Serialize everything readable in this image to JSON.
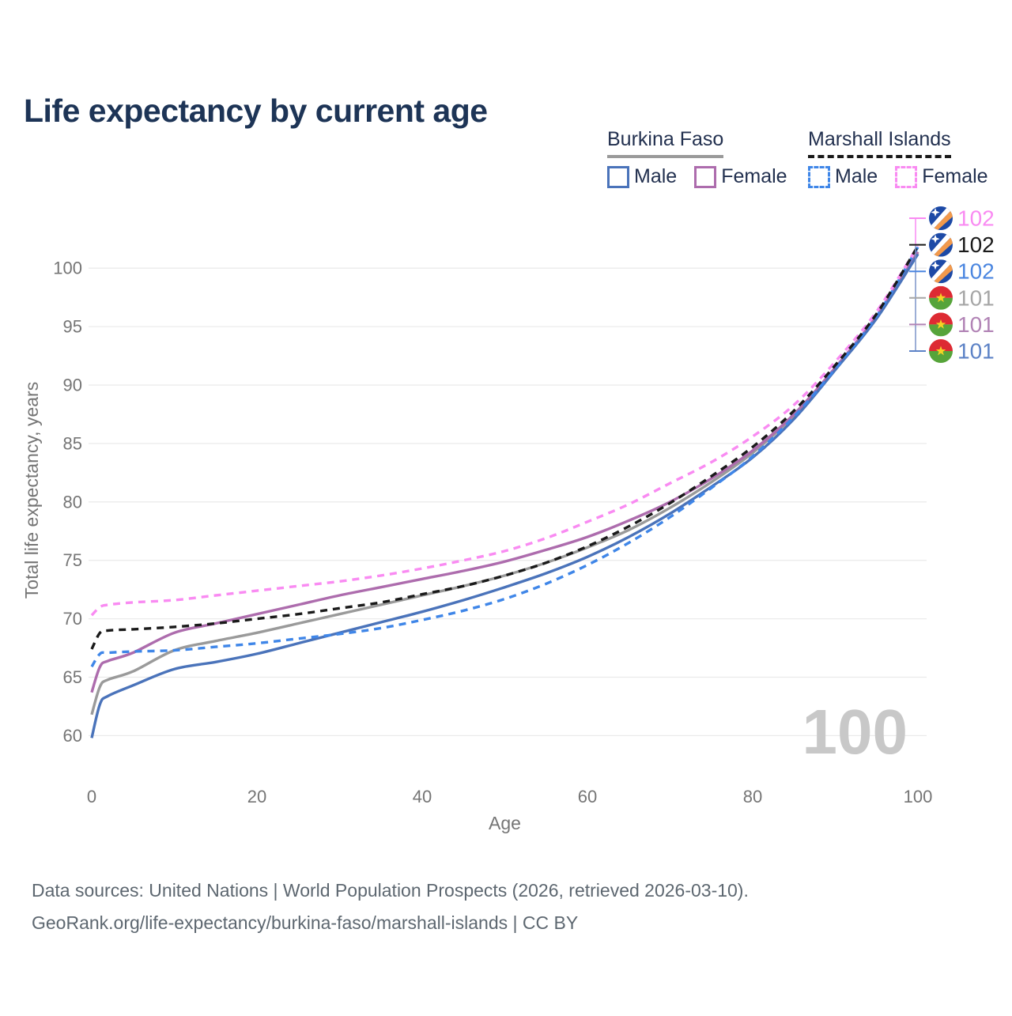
{
  "title": "Life expectancy by current age",
  "legend": {
    "groups": [
      {
        "label": "Burkina Faso",
        "underline": {
          "color": "#9a9a9a",
          "style": "solid"
        },
        "items": [
          {
            "label": "Male",
            "color": "#4a73ba",
            "dash": false
          },
          {
            "label": "Female",
            "color": "#ad6cad",
            "dash": false
          }
        ]
      },
      {
        "label": "Marshall Islands",
        "underline": {
          "color": "#1a1a1a",
          "style": "dashed"
        },
        "items": [
          {
            "label": "Male",
            "color": "#3f86e8",
            "dash": true
          },
          {
            "label": "Female",
            "color": "#f98bf2",
            "dash": true
          }
        ]
      }
    ]
  },
  "chart_data": {
    "type": "line",
    "title": "Life expectancy by current age",
    "xlabel": "Age",
    "ylabel": "Total life expectancy, years",
    "x_ticks": [
      0,
      20,
      40,
      60,
      80,
      100
    ],
    "y_ticks": [
      60,
      65,
      70,
      75,
      80,
      85,
      90,
      95,
      100
    ],
    "xlim": [
      0,
      100
    ],
    "ylim": [
      58,
      103
    ],
    "grid": true,
    "legend_position": "top-right",
    "watermark": "100",
    "x": [
      0,
      1,
      2,
      5,
      10,
      15,
      20,
      25,
      30,
      35,
      40,
      45,
      50,
      55,
      60,
      65,
      70,
      75,
      80,
      85,
      90,
      95,
      100
    ],
    "series": [
      {
        "name": "Marshall Islands Female",
        "country": "Marshall Islands",
        "sex": "Female",
        "color": "#f98bf2",
        "label_color": "#f98bf2",
        "dash": true,
        "flag": "marshall-islands",
        "end_label": "102",
        "values": [
          70.3,
          71.0,
          71.2,
          71.4,
          71.6,
          72.0,
          72.4,
          72.8,
          73.2,
          73.7,
          74.3,
          75.0,
          75.8,
          76.9,
          78.3,
          79.8,
          81.6,
          83.4,
          85.6,
          88.3,
          92.0,
          96.3,
          101.9
        ]
      },
      {
        "name": "Marshall Islands",
        "country": "Marshall Islands",
        "sex": "Both",
        "color": "#1a1a1a",
        "label_color": "#1a1a1a",
        "dash": true,
        "flag": "marshall-islands",
        "end_label": "102",
        "values": [
          67.4,
          68.8,
          69.0,
          69.1,
          69.3,
          69.6,
          70.0,
          70.4,
          70.9,
          71.4,
          72.1,
          72.8,
          73.7,
          74.8,
          76.2,
          77.9,
          79.9,
          82.2,
          84.7,
          87.8,
          91.7,
          96.1,
          101.9
        ]
      },
      {
        "name": "Marshall Islands Male",
        "country": "Marshall Islands",
        "sex": "Male",
        "color": "#3f86e8",
        "label_color": "#4b86e0",
        "dash": true,
        "flag": "marshall-islands",
        "end_label": "102",
        "values": [
          65.9,
          67.0,
          67.1,
          67.2,
          67.3,
          67.6,
          67.9,
          68.3,
          68.7,
          69.2,
          69.9,
          70.7,
          71.7,
          73.0,
          74.6,
          76.5,
          78.7,
          81.2,
          83.9,
          87.3,
          91.4,
          95.9,
          101.8
        ]
      },
      {
        "name": "Burkina Faso",
        "country": "Burkina Faso",
        "sex": "Both",
        "color": "#9a9a9a",
        "label_color": "#a6a6a6",
        "dash": false,
        "flag": "burkina-faso",
        "end_label": "101",
        "values": [
          61.8,
          64.2,
          64.8,
          65.5,
          67.3,
          68.1,
          68.8,
          69.6,
          70.4,
          71.2,
          72.0,
          72.8,
          73.7,
          74.8,
          76.1,
          77.6,
          79.5,
          81.7,
          84.2,
          87.4,
          91.4,
          95.8,
          101.3
        ]
      },
      {
        "name": "Burkina Faso Female",
        "country": "Burkina Faso",
        "sex": "Female",
        "color": "#ad6cad",
        "label_color": "#b183b5",
        "dash": false,
        "flag": "burkina-faso",
        "end_label": "101",
        "values": [
          63.7,
          65.9,
          66.4,
          67.1,
          68.8,
          69.6,
          70.4,
          71.2,
          72.0,
          72.7,
          73.4,
          74.1,
          74.9,
          75.9,
          77.0,
          78.4,
          80.0,
          82.0,
          84.4,
          87.5,
          91.5,
          95.9,
          101.4
        ]
      },
      {
        "name": "Burkina Faso Male",
        "country": "Burkina Faso",
        "sex": "Male",
        "color": "#4a73ba",
        "label_color": "#5c82c6",
        "dash": false,
        "flag": "burkina-faso",
        "end_label": "101",
        "values": [
          59.8,
          62.7,
          63.4,
          64.3,
          65.7,
          66.3,
          67.0,
          67.9,
          68.8,
          69.7,
          70.6,
          71.6,
          72.7,
          73.9,
          75.3,
          77.0,
          79.0,
          81.3,
          83.8,
          87.1,
          91.3,
          95.7,
          101.2
        ]
      }
    ],
    "flag_colors": {
      "marshall_islands_blue": "#1c49a6",
      "marshall_islands_orange": "#f2994b",
      "burkina_faso_red": "#dd2a33",
      "burkina_faso_green": "#56a43a",
      "burkina_faso_star": "#f5d324"
    }
  },
  "footer": {
    "line1": "Data sources: United Nations | World Population Prospects (2026, retrieved 2026-03-10).",
    "line2": "GeoRank.org/life-expectancy/burkina-faso/marshall-islands | CC BY"
  }
}
